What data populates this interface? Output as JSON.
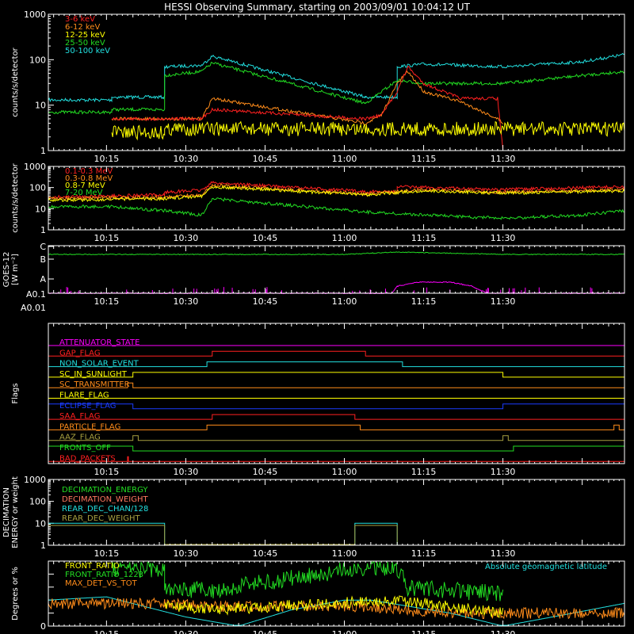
{
  "title": "HESSI Observing Summary, starting on 2003/09/01 10:04:12 UT",
  "colors": {
    "background": "#000000",
    "axes": "#ffffff",
    "red": "#ff2020",
    "orange": "#ff8c1a",
    "yellow": "#ffff00",
    "green": "#22dd22",
    "cyan": "#22e0e0",
    "magenta": "#ff00ff",
    "blue": "#1a3cff",
    "olive": "#a8a040",
    "salmon": "#ff7860"
  },
  "chart_data": [
    {
      "id": "low-energy",
      "type": "line",
      "ylabel": "counts/s/detector",
      "yscale": "log",
      "ylim": [
        1,
        1000
      ],
      "yticks": [
        "1",
        "10",
        "100",
        "1000"
      ],
      "xlim": [
        "10:04",
        "11:53"
      ],
      "xticks": [
        "10:15",
        "10:30",
        "10:45",
        "11:00",
        "11:15",
        "11:30"
      ],
      "legend": [
        "3-6 keV",
        "6-12 keV",
        "12-25 keV",
        "25-50 keV",
        "50-100 keV"
      ],
      "legend_colors": [
        "red",
        "orange",
        "yellow",
        "green",
        "cyan"
      ],
      "data_gaps": [
        [
          "10:35",
          "11:04"
        ]
      ],
      "series": [
        {
          "name": "50-100 keV",
          "color": "cyan",
          "x": [
            "10:04",
            "10:16",
            "10:16",
            "10:26",
            "10:26",
            "10:33",
            "10:35",
            "11:04",
            "11:04",
            "11:10",
            "11:10",
            "11:15",
            "11:30",
            "11:45",
            "11:53"
          ],
          "y": [
            13,
            13,
            15,
            15,
            70,
            75,
            120,
            15,
            15,
            15,
            70,
            80,
            70,
            90,
            130
          ]
        },
        {
          "name": "25-50 keV",
          "color": "green",
          "x": [
            "10:04",
            "10:16",
            "10:16",
            "10:26",
            "10:26",
            "10:33",
            "10:35",
            "11:04",
            "11:04",
            "11:10",
            "11:15",
            "11:30",
            "11:45",
            "11:53"
          ],
          "y": [
            7,
            7,
            8,
            8,
            45,
            55,
            85,
            11,
            11,
            35,
            30,
            30,
            45,
            55
          ]
        },
        {
          "name": "6-12 keV",
          "color": "orange",
          "x": [
            "10:16",
            "10:20",
            "10:26",
            "10:33",
            "10:35",
            "11:04",
            "11:07",
            "11:10",
            "11:12",
            "11:15",
            "11:22",
            "11:29",
            "11:30"
          ],
          "y": [
            5,
            5,
            5,
            5,
            14,
            4,
            6,
            30,
            55,
            20,
            12,
            5,
            4
          ]
        },
        {
          "name": "3-6 keV",
          "color": "red",
          "x": [
            "10:16",
            "10:20",
            "10:26",
            "10:33",
            "10:35",
            "11:04",
            "11:07",
            "11:10",
            "11:12",
            "11:15",
            "11:22",
            "11:29",
            "11:30"
          ],
          "y": [
            5,
            5,
            5,
            5,
            8,
            5,
            6,
            20,
            70,
            30,
            14,
            14,
            1
          ]
        },
        {
          "name": "12-25 keV",
          "color": "yellow",
          "x": [
            "10:16",
            "10:26",
            "10:26",
            "10:33",
            "10:35",
            "11:04",
            "11:10",
            "11:20",
            "11:30",
            "11:45",
            "11:53"
          ],
          "y": [
            2.5,
            2.5,
            3,
            3,
            3,
            3,
            3,
            3,
            3,
            3,
            3
          ]
        }
      ]
    },
    {
      "id": "high-energy",
      "type": "line",
      "ylabel": "counts/s/detector",
      "yscale": "log",
      "ylim": [
        1,
        1000
      ],
      "yticks": [
        "1",
        "10",
        "100",
        "1000"
      ],
      "xlim": [
        "10:04",
        "11:53"
      ],
      "xticks": [
        "10:15",
        "10:30",
        "10:45",
        "11:00",
        "11:15",
        "11:30"
      ],
      "legend": [
        "0.1-0.3 MeV",
        "0.3-0.8 MeV",
        "0.8-7 MeV",
        "7-20 MeV"
      ],
      "legend_colors": [
        "red",
        "orange",
        "yellow",
        "green"
      ],
      "data_gaps": [
        [
          "10:35",
          "11:04"
        ]
      ],
      "series": [
        {
          "name": "0.1-0.3 MeV",
          "color": "red",
          "x": [
            "10:04",
            "10:15",
            "10:26",
            "10:26",
            "10:33",
            "10:35",
            "11:04",
            "11:10",
            "11:10",
            "11:30",
            "11:53"
          ],
          "y": [
            35,
            40,
            45,
            60,
            75,
            170,
            65,
            60,
            110,
            80,
            110
          ]
        },
        {
          "name": "0.3-0.8 MeV",
          "color": "orange",
          "x": [
            "10:04",
            "10:26",
            "10:33",
            "10:35",
            "11:04",
            "11:15",
            "11:30",
            "11:53"
          ],
          "y": [
            30,
            35,
            45,
            130,
            50,
            80,
            60,
            80
          ]
        },
        {
          "name": "0.8-7 MeV",
          "color": "yellow",
          "x": [
            "10:04",
            "10:26",
            "10:33",
            "10:35",
            "11:04",
            "11:15",
            "11:30",
            "11:53"
          ],
          "y": [
            25,
            30,
            40,
            110,
            45,
            70,
            55,
            70
          ]
        },
        {
          "name": "7-20 MeV",
          "color": "green",
          "x": [
            "10:04",
            "10:15",
            "10:26",
            "10:33",
            "10:35",
            "11:04",
            "11:15",
            "11:30",
            "11:45",
            "11:53"
          ],
          "y": [
            12,
            13,
            8,
            5,
            30,
            7,
            5,
            3.5,
            5,
            8
          ]
        }
      ]
    },
    {
      "id": "goes",
      "type": "line",
      "ylabel": "GOES-12 [W m-2]",
      "ylabel_lines": [
        "GOES-12",
        "[W m⁻²]"
      ],
      "yticks": [
        "A0.01",
        "A0.1",
        "A",
        "B",
        "C"
      ],
      "xlim": [
        "10:04",
        "11:53"
      ],
      "xticks": [
        "10:15",
        "10:30",
        "10:45",
        "11:00",
        "11:15",
        "11:30"
      ],
      "series": [
        {
          "name": "",
          "color": "green",
          "x": [
            "10:04",
            "10:20",
            "11:00",
            "11:10",
            "11:30",
            "11:53"
          ],
          "y": [
            "C-",
            "C-",
            "C-",
            "C",
            "C-",
            "C-"
          ]
        },
        {
          "name": "",
          "color": "magenta",
          "x": [
            "10:04",
            "11:09",
            "11:10",
            "11:14",
            "11:20",
            "11:24",
            "11:27",
            "11:53"
          ],
          "y": [
            "A0.1",
            "A0.1",
            "A+",
            "A++",
            "A++",
            "A+",
            "A0.1",
            "A0.1"
          ]
        }
      ]
    },
    {
      "id": "flags",
      "type": "line",
      "ylabel": "Flags",
      "xlim": [
        "10:04",
        "11:53"
      ],
      "xticks": [
        "10:15",
        "10:30",
        "10:45",
        "11:00",
        "11:15",
        "11:30"
      ],
      "flags": [
        {
          "name": "ATTENUATOR_STATE",
          "color": "magenta",
          "on": []
        },
        {
          "name": "GAP_FLAG",
          "color": "red",
          "on": [
            [
              "10:35",
              "11:04"
            ]
          ]
        },
        {
          "name": "NON_SOLAR_EVENT",
          "color": "cyan",
          "on": [
            [
              "10:34",
              "11:11"
            ]
          ]
        },
        {
          "name": "SC_IN_SUNLIGHT",
          "color": "yellow",
          "on": [
            [
              "10:20",
              "11:30"
            ]
          ]
        },
        {
          "name": "SC_TRANSMITTER",
          "color": "orange",
          "on": [
            [
              "10:19",
              "10:20"
            ]
          ]
        },
        {
          "name": "FLARE_FLAG",
          "color": "yellow",
          "on": []
        },
        {
          "name": "ECLIPSE_FLAG",
          "color": "blue",
          "on": [
            [
              "10:04",
              "10:20"
            ],
            [
              "11:30",
              "11:53"
            ]
          ]
        },
        {
          "name": "SAA_FLAG",
          "color": "red",
          "on": [
            [
              "10:35",
              "11:02"
            ]
          ]
        },
        {
          "name": "PARTICLE_FLAG",
          "color": "orange",
          "on": [
            [
              "10:34",
              "11:03"
            ],
            [
              "11:51",
              "11:52"
            ]
          ]
        },
        {
          "name": "AAZ_FLAG",
          "color": "olive",
          "on": [
            [
              "10:20",
              "10:21"
            ],
            [
              "11:30",
              "11:31"
            ]
          ]
        },
        {
          "name": "FRONTS_OFF",
          "color": "green",
          "on": [
            [
              "10:04",
              "10:20"
            ],
            [
              "11:32",
              "11:53"
            ]
          ]
        },
        {
          "name": "BAD_PACKETS",
          "color": "red",
          "on": [
            [
              "10:19",
              "10:19"
            ]
          ]
        }
      ]
    },
    {
      "id": "decimation",
      "type": "line",
      "ylabel": "DECIMATION ENERGY or weight",
      "ylabel_lines": [
        "DECIMATION",
        "ENERGY or weight"
      ],
      "yscale": "log",
      "ylim": [
        1,
        1000
      ],
      "yticks": [
        "1",
        "10",
        "100",
        "1000"
      ],
      "xlim": [
        "10:04",
        "11:53"
      ],
      "xticks": [
        "10:15",
        "10:30",
        "10:45",
        "11:00",
        "11:15",
        "11:30"
      ],
      "legend": [
        "DECIMATION_ENERGY",
        "DECIMATION_WEIGHT",
        "REAR_DEC_CHAN/128",
        "REAR_DEC_WEIGHT"
      ],
      "legend_colors": [
        "green",
        "salmon",
        "cyan",
        "olive"
      ],
      "series": [
        {
          "name": "REAR_DEC_CHAN/128",
          "color": "cyan",
          "x": [
            "10:04",
            "10:04",
            "10:26",
            "10:26",
            "11:02",
            "11:02",
            "11:10",
            "11:10"
          ],
          "y": [
            1,
            10,
            10,
            1,
            1,
            10,
            10,
            1
          ]
        },
        {
          "name": "REAR_DEC_WEIGHT",
          "color": "olive",
          "x": [
            "10:04",
            "10:04",
            "10:26",
            "10:26",
            "11:02",
            "11:02",
            "11:10",
            "11:10"
          ],
          "y": [
            1,
            8,
            8,
            1,
            1,
            8,
            8,
            1
          ]
        }
      ]
    },
    {
      "id": "ratios",
      "type": "line",
      "ylabel": "Degrees or %",
      "ylim": [
        0,
        100
      ],
      "yticks": [
        "0",
        "20",
        "40",
        "60",
        "80",
        "100"
      ],
      "xlim": [
        "10:04",
        "11:53"
      ],
      "xticks": [
        "10:15",
        "10:30",
        "10:45",
        "11:00",
        "11:15",
        "11:30"
      ],
      "legend": [
        "FRONT_RATIO",
        "FRONT_RATIO_1223",
        "MAX_DET_VS_TOT"
      ],
      "legend_colors": [
        "yellow",
        "green",
        "orange"
      ],
      "annotation": "Absolute geomagnetic latitude",
      "series": [
        {
          "name": "Absolute geomagnetic latitude",
          "color": "cyan",
          "x": [
            "10:04",
            "10:15",
            "10:30",
            "10:40",
            "10:50",
            "11:00",
            "11:05",
            "11:20",
            "11:30",
            "11:40",
            "11:53"
          ],
          "y": [
            40,
            45,
            14,
            0,
            25,
            40,
            40,
            20,
            0,
            15,
            35
          ]
        },
        {
          "name": "FRONT_RATIO_1223",
          "color": "green",
          "x": [
            "10:16",
            "10:26",
            "10:26",
            "10:35",
            "11:04",
            "11:10",
            "11:12",
            "11:20",
            "11:30"
          ],
          "y": [
            90,
            85,
            55,
            55,
            90,
            90,
            60,
            55,
            50
          ]
        },
        {
          "name": "MAX_DET_VS_TOT",
          "color": "orange",
          "x": [
            "10:04",
            "10:26",
            "10:35",
            "11:04",
            "11:15",
            "11:30",
            "11:53"
          ],
          "y": [
            35,
            35,
            30,
            30,
            20,
            20,
            20
          ]
        },
        {
          "name": "FRONT_RATIO",
          "color": "yellow",
          "x": [
            "10:26",
            "10:30",
            "10:35",
            "11:09",
            "11:12",
            "11:20",
            "11:30"
          ],
          "y": [
            30,
            30,
            25,
            40,
            38,
            30,
            20
          ]
        }
      ]
    }
  ]
}
